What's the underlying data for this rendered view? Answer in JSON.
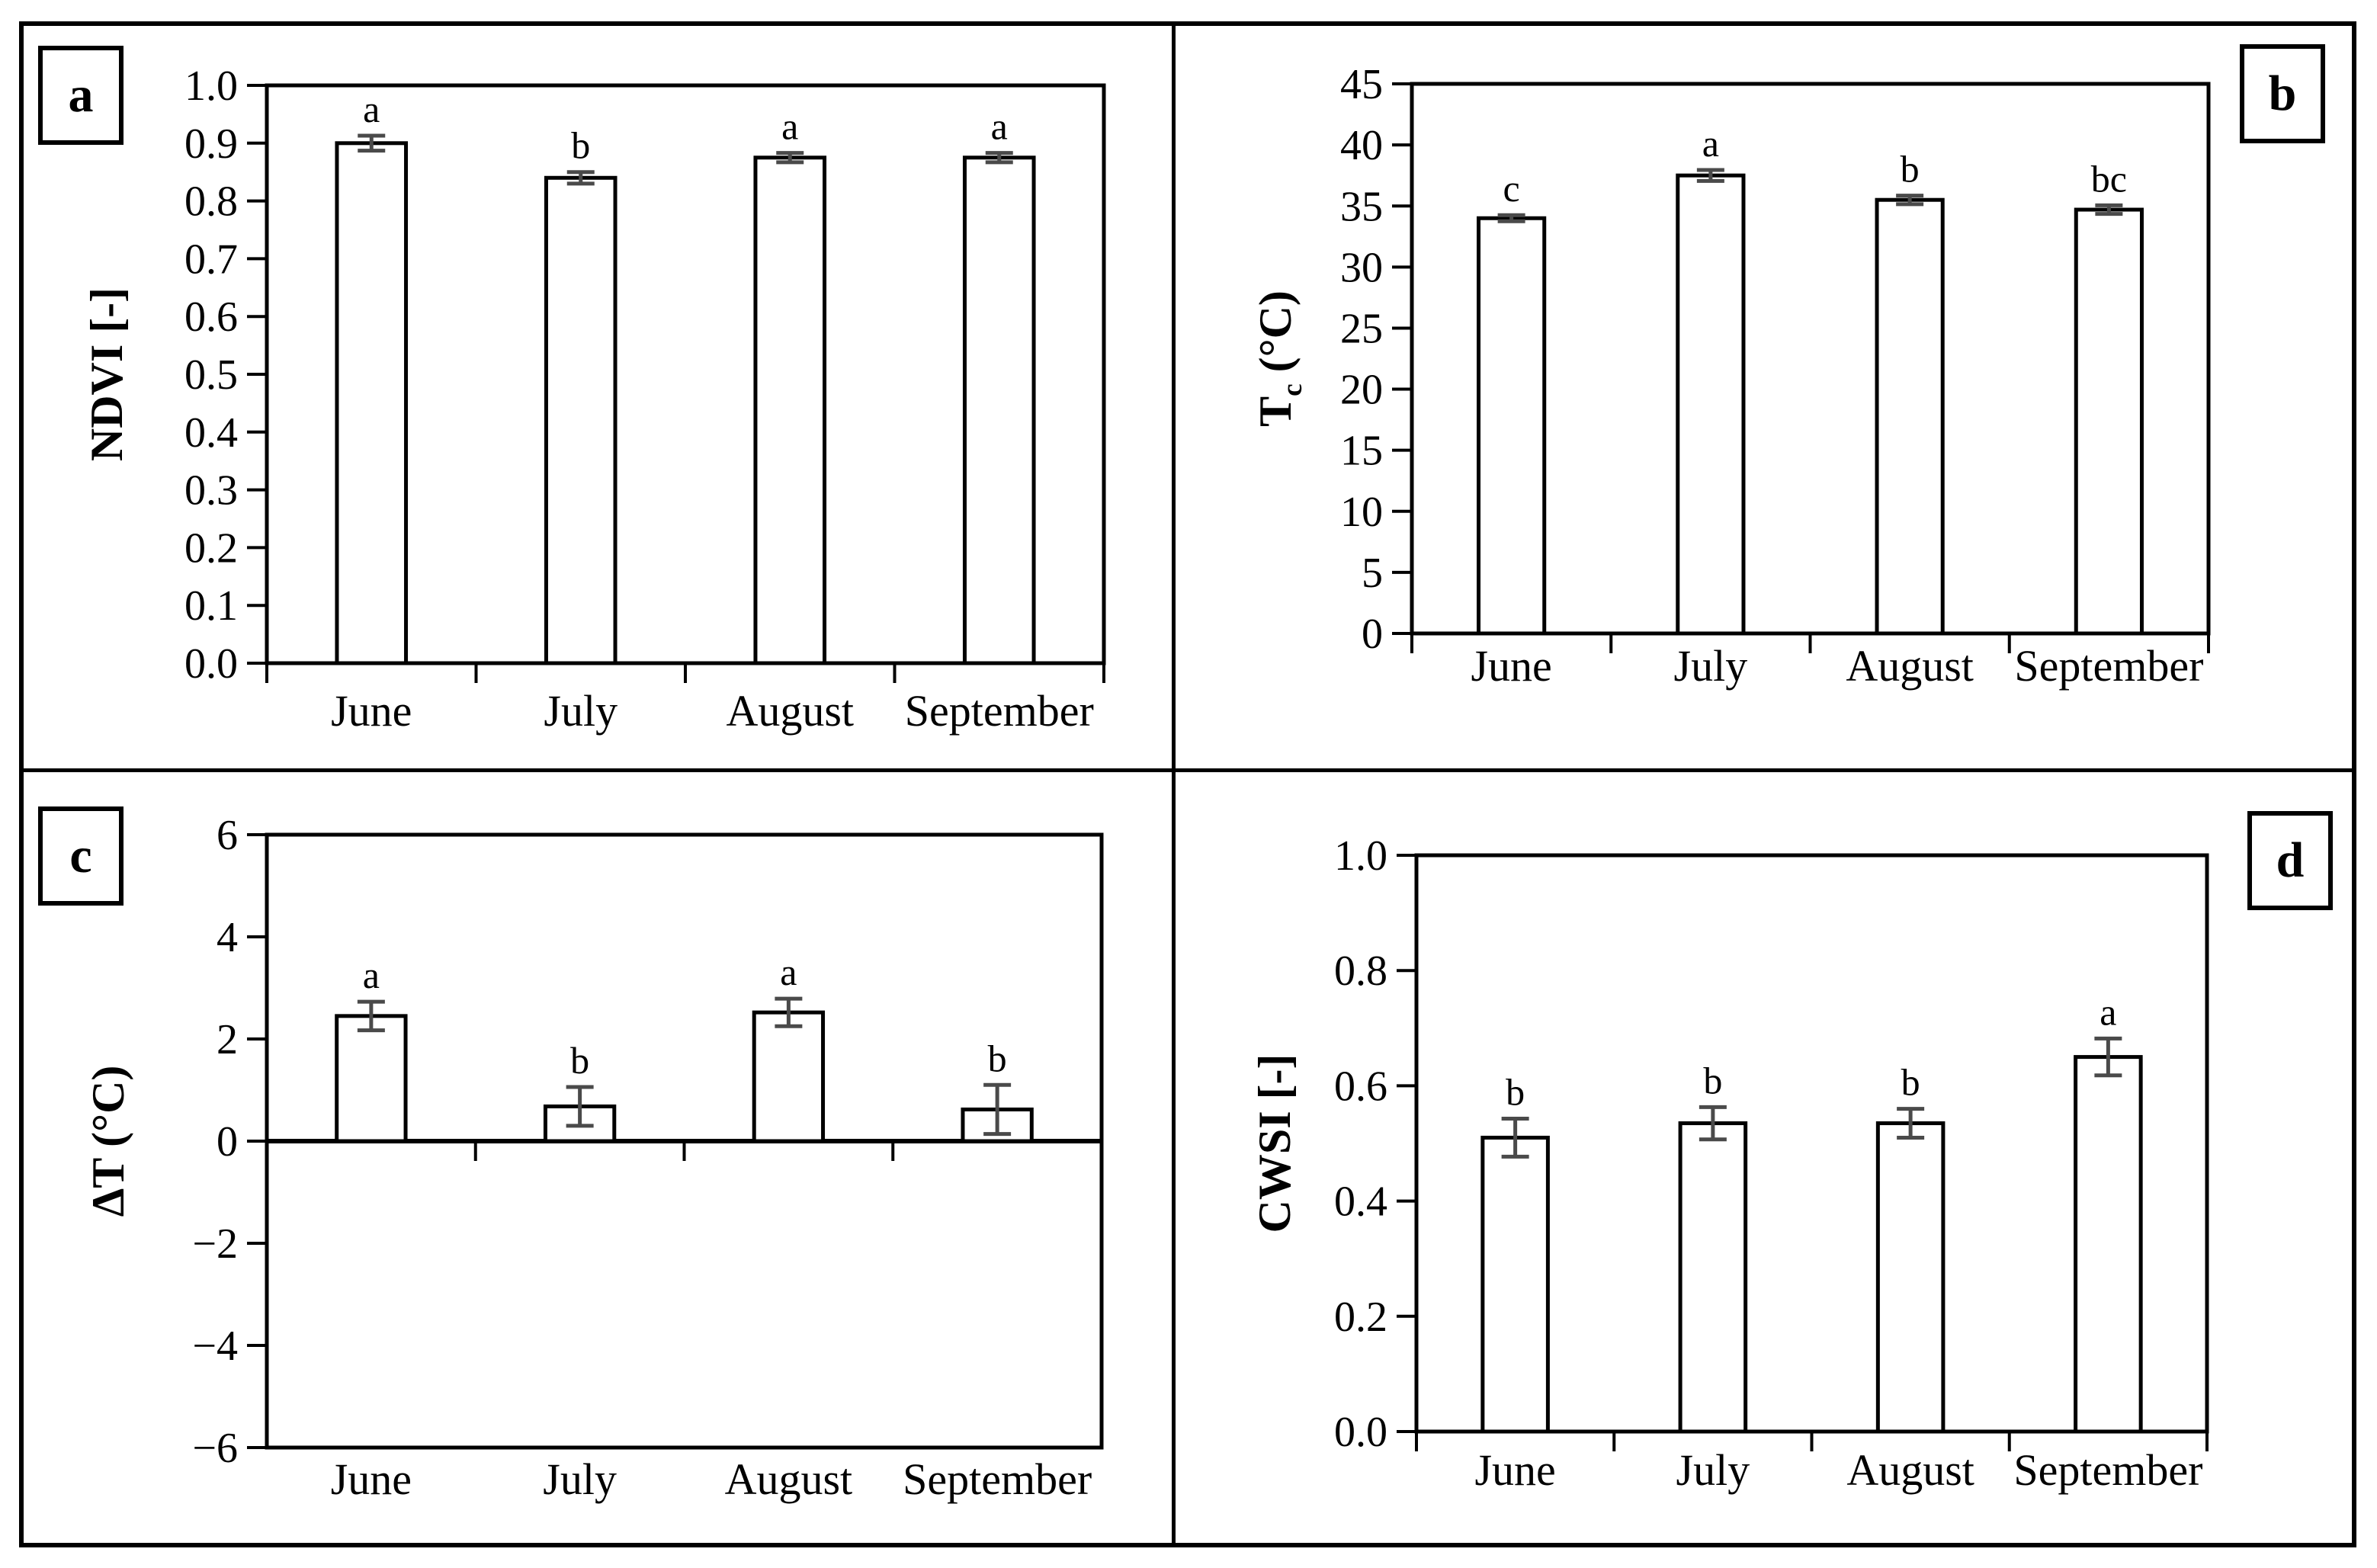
{
  "figure": {
    "background": "#ffffff",
    "frame_color": "#000000",
    "bar_fill": "#ffffff",
    "bar_stroke": "#000000",
    "error_bar_color": "#4a4a4a",
    "text_color": "#000000"
  },
  "chart_data": [
    {
      "panel_label": "a",
      "type": "bar",
      "title": "",
      "xlabel": "",
      "ylabel": {
        "main": "NDVI [-]",
        "sub": "",
        "rest": ""
      },
      "categories": [
        "June",
        "July",
        "August",
        "September"
      ],
      "values": [
        0.9,
        0.84,
        0.875,
        0.875
      ],
      "errors": [
        0.013,
        0.01,
        0.008,
        0.008
      ],
      "sig_letters": [
        "a",
        "b",
        "a",
        "a"
      ],
      "ylim": [
        0.0,
        1.0
      ],
      "grid": false,
      "legend_position": "none",
      "yticks": [
        {
          "v": 1.0,
          "label": "1.0"
        },
        {
          "v": 0.9,
          "label": "0.9"
        },
        {
          "v": 0.8,
          "label": "0.8"
        },
        {
          "v": 0.7,
          "label": "0.7"
        },
        {
          "v": 0.6,
          "label": "0.6"
        },
        {
          "v": 0.5,
          "label": "0.5"
        },
        {
          "v": 0.4,
          "label": "0.4"
        },
        {
          "v": 0.3,
          "label": "0.3"
        },
        {
          "v": 0.2,
          "label": "0.2"
        },
        {
          "v": 0.1,
          "label": "0.1"
        },
        {
          "v": 0.0,
          "label": "0.0"
        }
      ]
    },
    {
      "panel_label": "b",
      "type": "bar",
      "title": "",
      "xlabel": "",
      "ylabel": {
        "main": "T",
        "sub": "c",
        "rest": " (°C)"
      },
      "categories": [
        "June",
        "July",
        "August",
        "September"
      ],
      "values": [
        34.0,
        37.5,
        35.5,
        34.7
      ],
      "errors": [
        0.25,
        0.45,
        0.35,
        0.35
      ],
      "sig_letters": [
        "c",
        "a",
        "b",
        "bc"
      ],
      "ylim": [
        0,
        45
      ],
      "grid": false,
      "legend_position": "none",
      "yticks": [
        {
          "v": 45,
          "label": "45"
        },
        {
          "v": 40,
          "label": "40"
        },
        {
          "v": 35,
          "label": "35"
        },
        {
          "v": 30,
          "label": "30"
        },
        {
          "v": 25,
          "label": "25"
        },
        {
          "v": 20,
          "label": "20"
        },
        {
          "v": 15,
          "label": "15"
        },
        {
          "v": 10,
          "label": "10"
        },
        {
          "v": 5,
          "label": "5"
        },
        {
          "v": 0,
          "label": "0"
        }
      ]
    },
    {
      "panel_label": "c",
      "type": "bar",
      "title": "",
      "xlabel": "",
      "ylabel": {
        "main": "ΔT (°C)",
        "sub": "",
        "rest": ""
      },
      "categories": [
        "June",
        "July",
        "August",
        "September"
      ],
      "values": [
        2.45,
        0.68,
        2.52,
        0.62
      ],
      "errors": [
        0.28,
        0.38,
        0.27,
        0.48
      ],
      "sig_letters": [
        "a",
        "b",
        "a",
        "b"
      ],
      "ylim": [
        -6,
        6
      ],
      "grid": false,
      "legend_position": "none",
      "yticks": [
        {
          "v": 6,
          "label": "6"
        },
        {
          "v": 4,
          "label": "4"
        },
        {
          "v": 2,
          "label": "2"
        },
        {
          "v": 0,
          "label": "0"
        },
        {
          "v": -2,
          "label": "−2"
        },
        {
          "v": -4,
          "label": "−4"
        },
        {
          "v": -6,
          "label": "−6"
        }
      ]
    },
    {
      "panel_label": "d",
      "type": "bar",
      "title": "",
      "xlabel": "",
      "ylabel": {
        "main": "CWSI [-]",
        "sub": "",
        "rest": ""
      },
      "categories": [
        "June",
        "July",
        "August",
        "September"
      ],
      "values": [
        0.51,
        0.535,
        0.535,
        0.65
      ],
      "errors": [
        0.033,
        0.028,
        0.025,
        0.032
      ],
      "sig_letters": [
        "b",
        "b",
        "b",
        "a"
      ],
      "ylim": [
        0.0,
        1.0
      ],
      "grid": false,
      "legend_position": "none",
      "yticks": [
        {
          "v": 1.0,
          "label": "1.0"
        },
        {
          "v": 0.8,
          "label": "0.8"
        },
        {
          "v": 0.6,
          "label": "0.6"
        },
        {
          "v": 0.4,
          "label": "0.4"
        },
        {
          "v": 0.2,
          "label": "0.2"
        },
        {
          "v": 0.0,
          "label": "0.0"
        }
      ]
    }
  ]
}
